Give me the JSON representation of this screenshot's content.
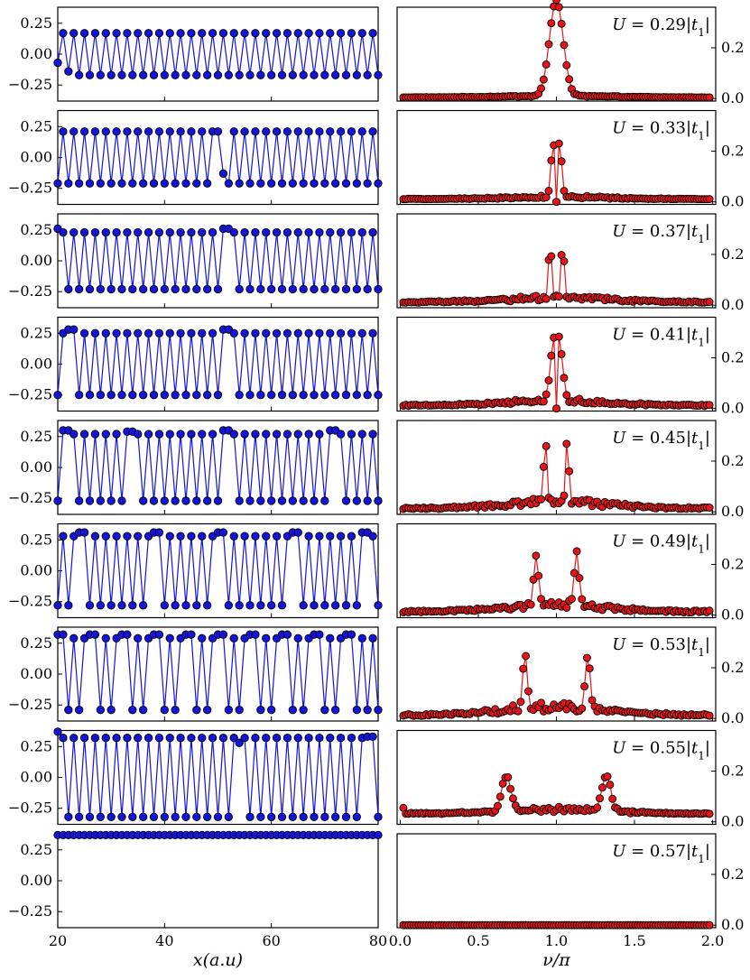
{
  "chart_data": {
    "type": "line",
    "layout": "9 rows x 2 columns",
    "left_column": {
      "xlabel": "x(a.u)",
      "xlim": [
        20,
        80
      ],
      "xticks": [
        "20",
        "40",
        "60",
        "80"
      ],
      "ylim": [
        -0.38,
        0.38
      ],
      "yticks": [
        "0.25",
        "0.00",
        "−0.25"
      ],
      "ytick_values": [
        0.25,
        0.0,
        -0.25
      ],
      "series_color": "#1414dc",
      "marker_edge": "#000000"
    },
    "right_column": {
      "xlabel": "ν/π",
      "xlim": [
        -0.02,
        2.02
      ],
      "xticks": [
        "0.0",
        "0.5",
        "1.0",
        "1.5",
        "2.0"
      ],
      "ylim": [
        -0.01,
        0.36
      ],
      "yticks": [
        "0.2",
        "0.0"
      ],
      "ytick_values": [
        0.2,
        0.0
      ],
      "y_axis_side": "right",
      "series_color": "#e8141a",
      "marker_edge": "#000000"
    },
    "panels": [
      {
        "U": "U = 0.29|t1|",
        "left": {
          "amplitude": 0.17,
          "defects": [
            {
              "x": 20,
              "y": -0.07
            },
            {
              "x": 22,
              "y": -0.14
            }
          ]
        },
        "right": {
          "peaks": [
            {
              "nu": 0.964,
              "h": 0.11
            },
            {
              "nu": 1.0,
              "h": 0.245
            },
            {
              "nu": 1.036,
              "h": 0.11
            }
          ],
          "width": 0.05,
          "noise": 0.006,
          "base": 0.004
        }
      },
      {
        "U": "U = 0.33|t1|",
        "left": {
          "amplitude": 0.21,
          "defects": [
            {
              "x": 49,
              "y": 0.21
            },
            {
              "x": 50,
              "y": 0.21
            },
            {
              "x": 51,
              "y": -0.13
            }
          ]
        },
        "right": {
          "peaks": [
            {
              "nu": 0.98,
              "h": 0.205
            },
            {
              "nu": 1.02,
              "h": 0.205
            }
          ],
          "width": 0.02,
          "noise": 0.01,
          "base": 0.01,
          "dip": 1.0
        }
      },
      {
        "U": "U = 0.37|t1|",
        "left": {
          "amplitude": 0.23,
          "defects": [
            {
              "x": 20,
              "y": 0.26
            },
            {
              "x": 51,
              "y": 0.26
            },
            {
              "x": 52,
              "y": 0.26
            }
          ]
        },
        "right": {
          "peaks": [
            {
              "nu": 0.96,
              "h": 0.245
            },
            {
              "nu": 1.04,
              "h": 0.245
            }
          ],
          "width": 0.012,
          "noise": 0.02,
          "base": 0.01
        }
      },
      {
        "U": "U = 0.41|t1|",
        "left": {
          "amplitude": 0.25,
          "defects": [
            {
              "x": 22,
              "y": 0.28
            },
            {
              "x": 23,
              "y": 0.28
            },
            {
              "x": 51,
              "y": 0.28
            },
            {
              "x": 52,
              "y": 0.28
            }
          ]
        },
        "right": {
          "peaks": [
            {
              "nu": 0.98,
              "h": 0.2
            },
            {
              "nu": 1.02,
              "h": 0.2
            }
          ],
          "width": 0.03,
          "noise": 0.02,
          "base": 0.01,
          "dip": 1.0
        }
      },
      {
        "U": "U = 0.45|t1|",
        "left": {
          "amplitude": 0.27,
          "defects": [
            {
              "x": 21,
              "y": 0.3
            },
            {
              "x": 22,
              "y": 0.3
            },
            {
              "x": 33,
              "y": 0.29
            },
            {
              "x": 34,
              "y": 0.29
            },
            {
              "x": 51,
              "y": 0.3
            },
            {
              "x": 52,
              "y": 0.3
            },
            {
              "x": 71,
              "y": 0.3
            },
            {
              "x": 72,
              "y": 0.3
            }
          ]
        },
        "right": {
          "peaks": [
            {
              "nu": 0.93,
              "h": 0.235
            },
            {
              "nu": 1.07,
              "h": 0.235
            }
          ],
          "width": 0.015,
          "noise": 0.03,
          "base": 0.01
        }
      },
      {
        "U": "U = 0.49|t1|",
        "left": {
          "amplitude": 0.28,
          "defects": [
            {
              "x": 24,
              "y": 0.31
            },
            {
              "x": 25,
              "y": 0.31
            },
            {
              "x": 38,
              "y": 0.31
            },
            {
              "x": 39,
              "y": 0.31
            },
            {
              "x": 50,
              "y": 0.31
            },
            {
              "x": 51,
              "y": 0.31
            },
            {
              "x": 64,
              "y": 0.31
            },
            {
              "x": 65,
              "y": 0.31
            },
            {
              "x": 77,
              "y": 0.31
            },
            {
              "x": 78,
              "y": 0.31
            }
          ]
        },
        "right": {
          "peaks": [
            {
              "nu": 0.87,
              "h": 0.205
            },
            {
              "nu": 1.13,
              "h": 0.205
            }
          ],
          "width": 0.02,
          "noise": 0.03,
          "base": 0.01
        }
      },
      {
        "U": "U = 0.53|t1|",
        "left": {
          "amplitude": 0.29,
          "defects": [
            {
              "x": 20,
              "y": 0.32
            },
            {
              "x": 21,
              "y": 0.32
            },
            {
              "x": 26,
              "y": 0.32
            },
            {
              "x": 27,
              "y": 0.32
            },
            {
              "x": 32,
              "y": 0.32
            },
            {
              "x": 33,
              "y": 0.32
            },
            {
              "x": 38,
              "y": 0.32
            },
            {
              "x": 39,
              "y": 0.32
            },
            {
              "x": 44,
              "y": 0.32
            },
            {
              "x": 45,
              "y": 0.32
            },
            {
              "x": 50,
              "y": 0.32
            },
            {
              "x": 51,
              "y": 0.32
            },
            {
              "x": 56,
              "y": 0.32
            },
            {
              "x": 57,
              "y": 0.32
            },
            {
              "x": 62,
              "y": 0.32
            },
            {
              "x": 63,
              "y": 0.32
            },
            {
              "x": 68,
              "y": 0.32
            },
            {
              "x": 69,
              "y": 0.32
            },
            {
              "x": 74,
              "y": 0.32
            },
            {
              "x": 75,
              "y": 0.32
            }
          ]
        },
        "right": {
          "peaks": [
            {
              "nu": 0.8,
              "h": 0.22
            },
            {
              "nu": 1.2,
              "h": 0.22
            }
          ],
          "width": 0.02,
          "noise": 0.035,
          "base": 0.01
        }
      },
      {
        "U": "U = 0.55|t1|",
        "left": {
          "amplitude": 0.32,
          "defects": [
            {
              "x": 20,
              "y": 0.37
            },
            {
              "x": 54,
              "y": 0.28
            },
            {
              "x": 78,
              "y": 0.33
            },
            {
              "x": 79,
              "y": 0.33
            }
          ]
        },
        "right": {
          "peaks": [
            {
              "nu": 0.68,
              "h": 0.14
            },
            {
              "nu": 1.32,
              "h": 0.14
            }
          ],
          "width": 0.04,
          "noise": 0.02,
          "base": 0.03,
          "start": 0.055
        }
      },
      {
        "U": "U = 0.57|t1|",
        "left": {
          "amplitude": 0.0,
          "flat": 0.37,
          "defects": []
        },
        "right": {
          "peaks": [],
          "width": 0.01,
          "noise": 0.0,
          "base": 0.0
        }
      }
    ]
  }
}
